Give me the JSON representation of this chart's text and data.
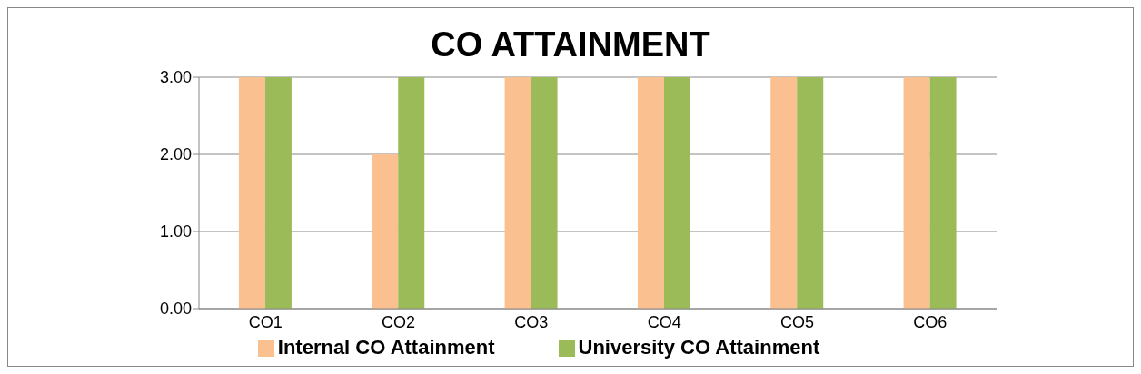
{
  "chart_data": {
    "type": "bar",
    "title": "CO ATTAINMENT",
    "categories": [
      "CO1",
      "CO2",
      "CO3",
      "CO4",
      "CO5",
      "CO6"
    ],
    "series": [
      {
        "name": "Internal CO Attainment",
        "color": "#fac090",
        "values": [
          3,
          2,
          3,
          3,
          3,
          3
        ]
      },
      {
        "name": "University CO Attainment",
        "color": "#9bbb59",
        "values": [
          3,
          3,
          3,
          3,
          3,
          3
        ]
      }
    ],
    "ylim": [
      0,
      3
    ],
    "yticks": [
      {
        "value": 0,
        "label": "0.00"
      },
      {
        "value": 1,
        "label": "1.00"
      },
      {
        "value": 2,
        "label": "2.00"
      },
      {
        "value": 3,
        "label": "3.00"
      }
    ],
    "grid": "y",
    "legend": "bottom"
  }
}
